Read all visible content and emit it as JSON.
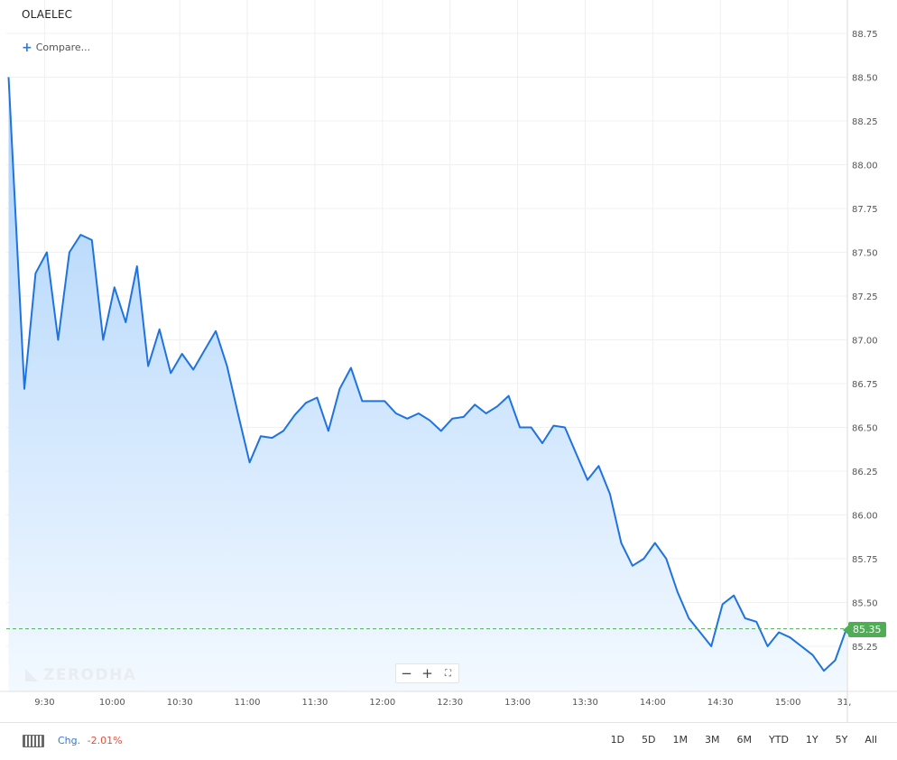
{
  "header": {
    "symbol": "OLAELEC",
    "compare_label": "Compare..."
  },
  "watermark": "ZERODHA",
  "zoom": {
    "out": "−",
    "in": "+",
    "reset": "⛶"
  },
  "last_price": "85.35",
  "bottom_bar": {
    "chg_label": "Chg.",
    "chg_value": "-2.01%",
    "ranges": [
      "1D",
      "5D",
      "1M",
      "3M",
      "6M",
      "YTD",
      "1Y",
      "5Y",
      "All"
    ]
  },
  "icons": {
    "keyboard": "keyboard-icon",
    "plus": "plus-icon"
  },
  "colors": {
    "line": "#1f73e0",
    "fill_top": "#a9d1fb",
    "fill_bottom": "#f3f9ff",
    "last_price_badge": "#4fae55",
    "negative": "#e04f3f"
  },
  "chart_data": {
    "type": "area",
    "title": "",
    "xlabel": "",
    "ylabel": "",
    "y_axis_position": "right",
    "grid": true,
    "ylim": [
      85.05,
      88.95
    ],
    "y_ticks": [
      "85.25",
      "85.50",
      "85.75",
      "86.00",
      "86.25",
      "86.50",
      "86.75",
      "87.00",
      "87.25",
      "87.50",
      "87.75",
      "88.00",
      "88.25",
      "88.50",
      "88.75"
    ],
    "x_ticks": [
      {
        "t": 570,
        "label": "9:30"
      },
      {
        "t": 600,
        "label": "10:00"
      },
      {
        "t": 630,
        "label": "10:30"
      },
      {
        "t": 660,
        "label": "11:00"
      },
      {
        "t": 690,
        "label": "11:30"
      },
      {
        "t": 720,
        "label": "12:00"
      },
      {
        "t": 750,
        "label": "12:30"
      },
      {
        "t": 780,
        "label": "13:00"
      },
      {
        "t": 810,
        "label": "13:30"
      },
      {
        "t": 840,
        "label": "14:00"
      },
      {
        "t": 870,
        "label": "14:30"
      },
      {
        "t": 900,
        "label": "15:00"
      },
      {
        "t": 925,
        "label": "31,"
      }
    ],
    "reference_line": 85.35,
    "series": [
      {
        "t": [
          554,
          561,
          566,
          571,
          576,
          581,
          586,
          591,
          596,
          601,
          606,
          611,
          616,
          621,
          626,
          631,
          636,
          641,
          646,
          651,
          656,
          661,
          666,
          671,
          676,
          681,
          686,
          691,
          696,
          701,
          706,
          711,
          716,
          721,
          726,
          731,
          736,
          741,
          746,
          751,
          756,
          761,
          766,
          771,
          776,
          781,
          786,
          791,
          796,
          801,
          806,
          811,
          816,
          821,
          826,
          831,
          836,
          841,
          846,
          851,
          856,
          861,
          866,
          871,
          876,
          881,
          886,
          891,
          896,
          901,
          906,
          911,
          916,
          921,
          926
        ],
        "values": [
          88.5,
          86.72,
          87.38,
          87.5,
          87.0,
          87.5,
          87.6,
          87.57,
          87.0,
          87.3,
          87.1,
          87.42,
          86.85,
          87.06,
          86.81,
          86.92,
          86.83,
          86.94,
          87.05,
          86.85,
          86.57,
          86.3,
          86.45,
          86.44,
          86.48,
          86.57,
          86.64,
          86.67,
          86.48,
          86.72,
          86.84,
          86.65,
          86.65,
          86.65,
          86.58,
          86.55,
          86.58,
          86.54,
          86.48,
          86.55,
          86.56,
          86.63,
          86.58,
          86.62,
          86.68,
          86.5,
          86.5,
          86.41,
          86.51,
          86.5,
          86.35,
          86.2,
          86.28,
          86.12,
          85.84,
          85.71,
          85.75,
          85.84,
          85.75,
          85.56,
          85.41,
          85.33,
          85.25,
          85.49,
          85.54,
          85.41,
          85.39,
          85.25,
          85.33,
          85.3,
          85.25,
          85.2,
          85.11,
          85.17,
          85.35
        ]
      }
    ]
  }
}
